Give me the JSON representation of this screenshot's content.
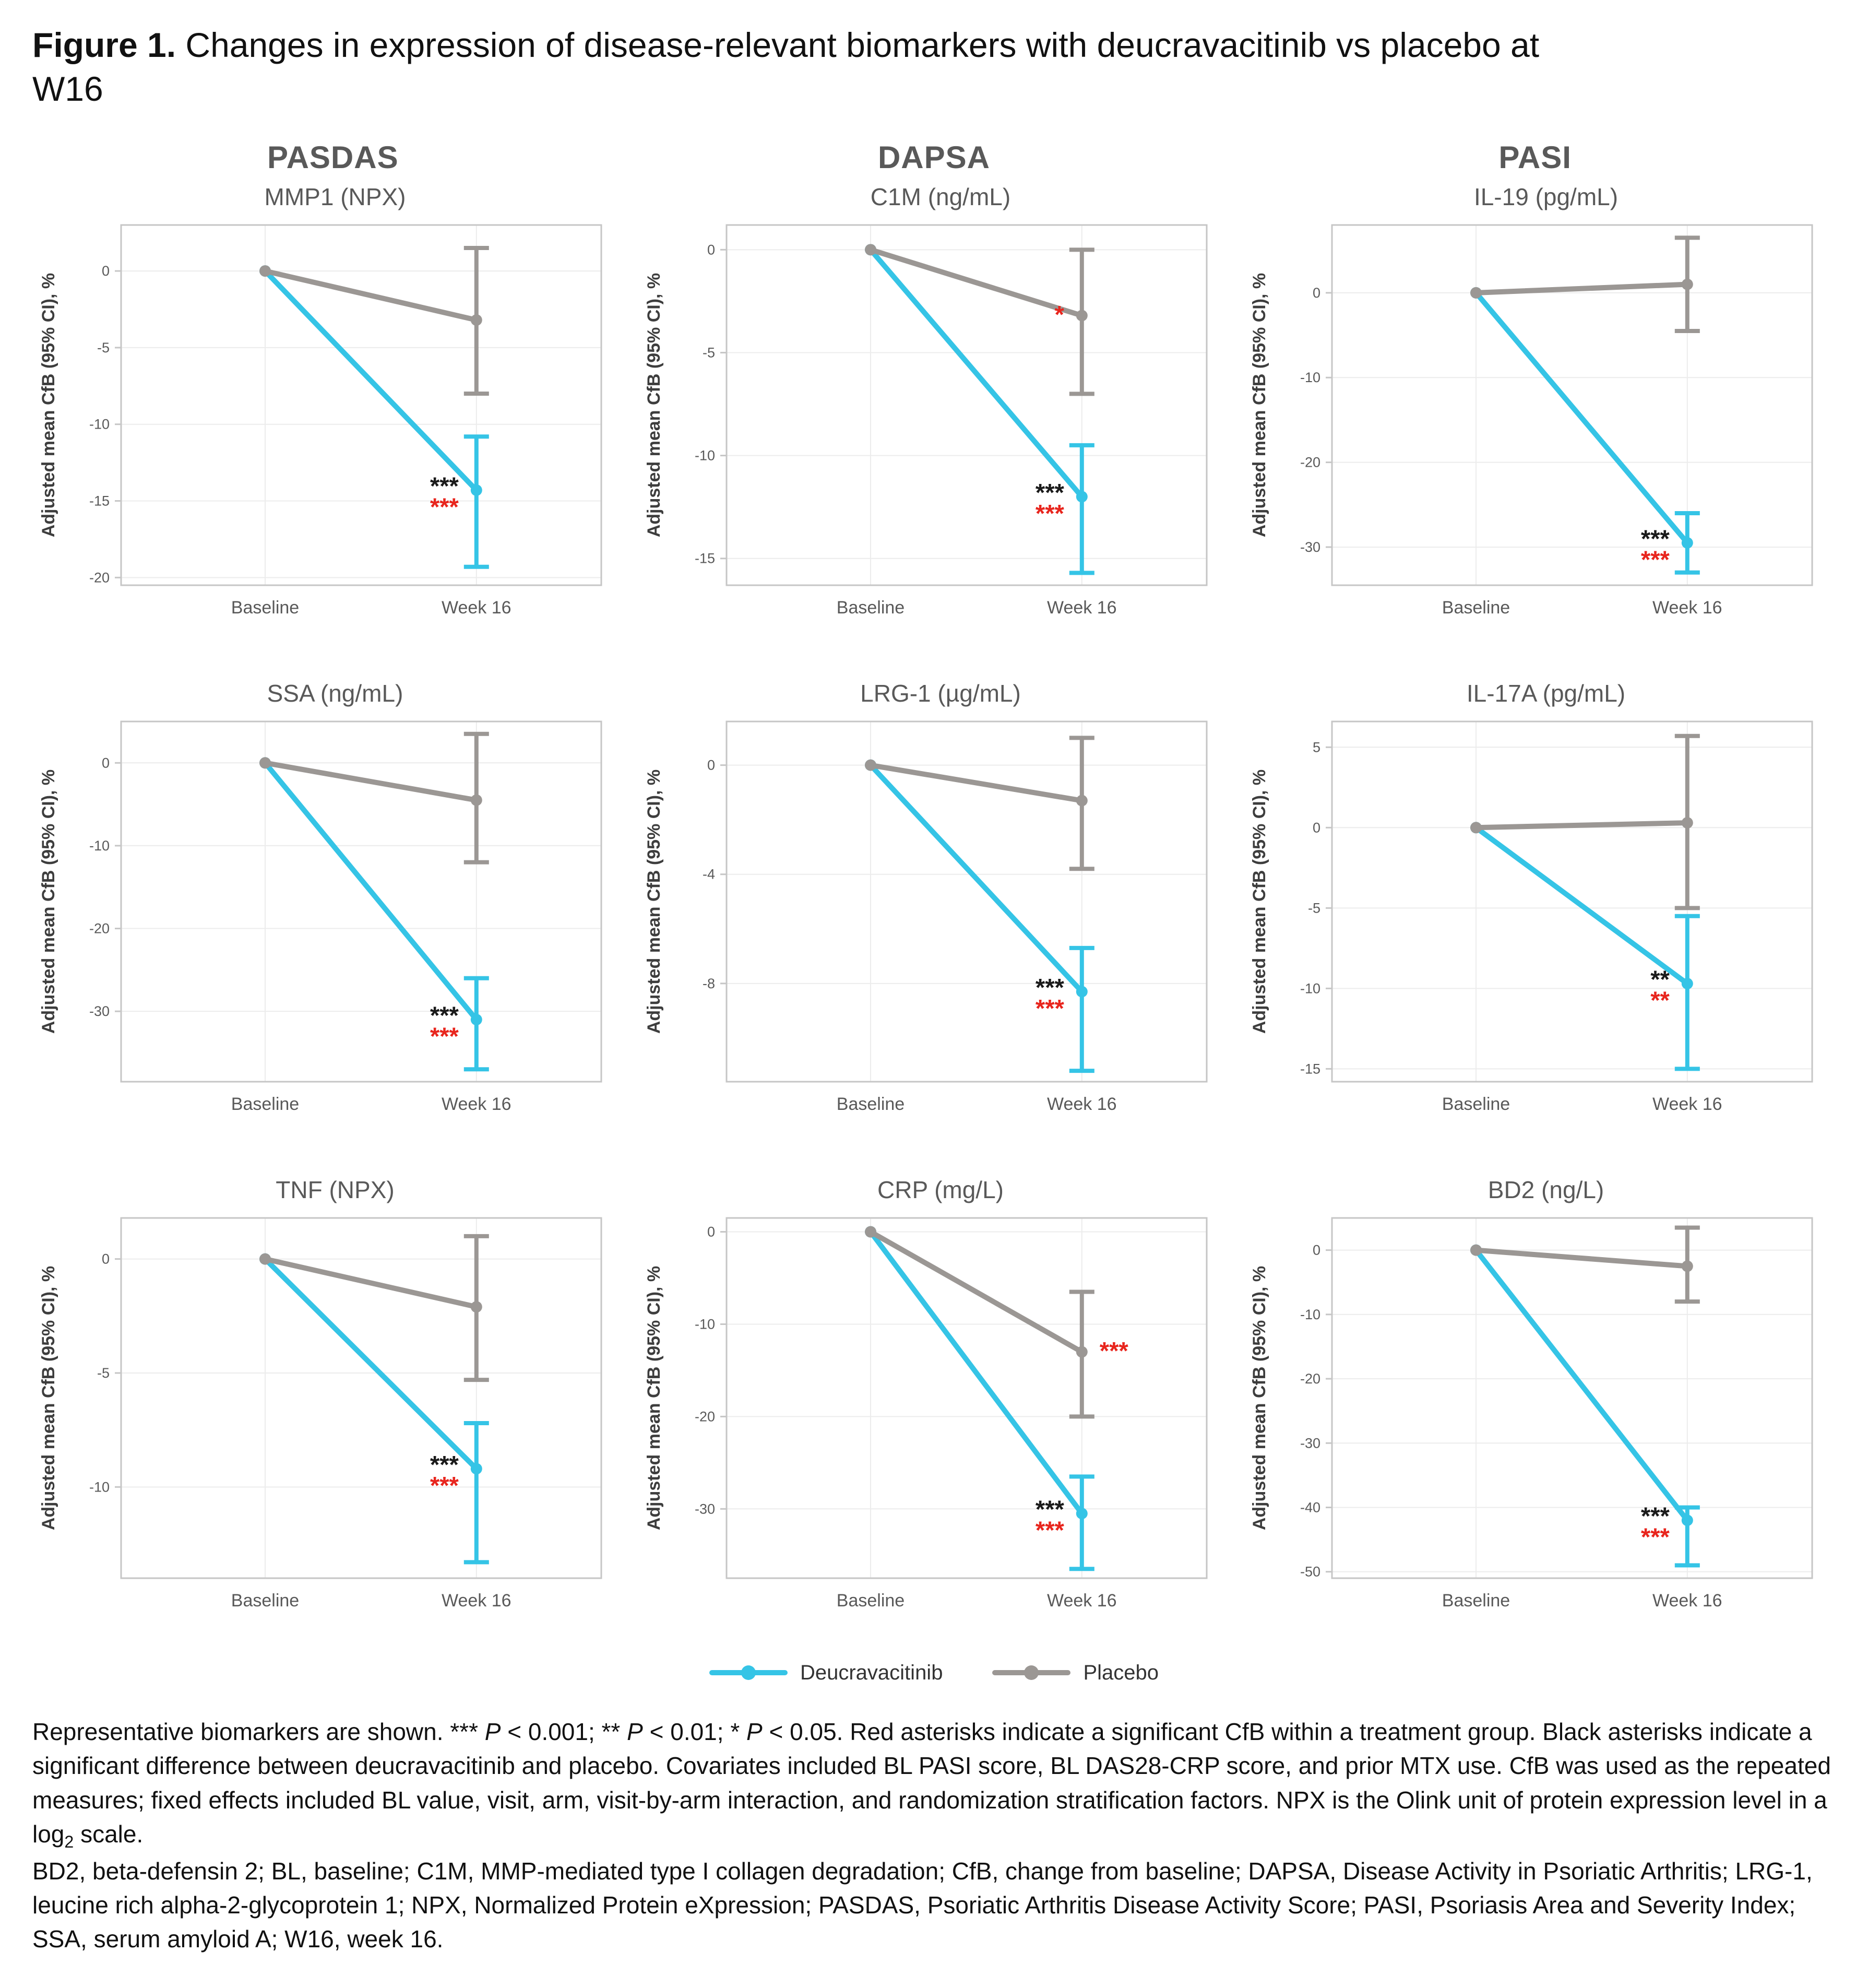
{
  "figure": {
    "title_prefix": "Figure 1.",
    "title_rest": " Changes in expression of disease-relevant biomarkers with deucravacitinib vs placebo at W16"
  },
  "columns": [
    "PASDAS",
    "DAPSA",
    "PASI"
  ],
  "legend": [
    {
      "label": "Deucravacitinib",
      "color": "#35C4E6"
    },
    {
      "label": "Placebo",
      "color": "#9B9794"
    }
  ],
  "colors": {
    "deucravacitinib": "#35C4E6",
    "placebo": "#9B9794",
    "sig_red": "#E8251D",
    "sig_black": "#1A1A1A",
    "axis_text": "#595959",
    "grid": "#ECECEC",
    "panel_border": "#C6C6C6"
  },
  "axis": {
    "ylabel": "Adjusted mean CfB (95% CI), %",
    "x_categories": [
      "Baseline",
      "Week 16"
    ]
  },
  "chart_data": [
    {
      "type": "line",
      "title": "MMP1 (NPX)",
      "column": "PASDAS",
      "x": [
        "Baseline",
        "Week 16"
      ],
      "ylim": [
        -20.5,
        3
      ],
      "yticks": [
        0,
        -5,
        -10,
        -15,
        -20
      ],
      "series": [
        {
          "name": "Placebo",
          "values": [
            0,
            -3.2
          ],
          "ci": [
            null,
            [
              -8.0,
              1.5
            ]
          ],
          "sig": null
        },
        {
          "name": "Deucravacitinib",
          "values": [
            0,
            -14.3
          ],
          "ci": [
            null,
            [
              -19.3,
              -10.8
            ]
          ],
          "sig": {
            "black": "***",
            "red": "***",
            "side": "left"
          }
        }
      ]
    },
    {
      "type": "line",
      "title": "C1M (ng/mL)",
      "column": "DAPSA",
      "x": [
        "Baseline",
        "Week 16"
      ],
      "ylim": [
        -16.3,
        1.2
      ],
      "yticks": [
        0,
        -5,
        -10,
        -15
      ],
      "series": [
        {
          "name": "Placebo",
          "values": [
            0,
            -3.2
          ],
          "ci": [
            null,
            [
              -7.0,
              0.0
            ]
          ],
          "sig": {
            "black": "",
            "red": "*",
            "side": "left"
          }
        },
        {
          "name": "Deucravacitinib",
          "values": [
            0,
            -12.0
          ],
          "ci": [
            null,
            [
              -15.7,
              -9.5
            ]
          ],
          "sig": {
            "black": "***",
            "red": "***",
            "side": "left"
          }
        }
      ]
    },
    {
      "type": "line",
      "title": "IL-19 (pg/mL)",
      "column": "PASI",
      "x": [
        "Baseline",
        "Week 16"
      ],
      "ylim": [
        -34.5,
        8
      ],
      "yticks": [
        0,
        -10,
        -20,
        -30
      ],
      "series": [
        {
          "name": "Placebo",
          "values": [
            0,
            1.0
          ],
          "ci": [
            null,
            [
              -4.5,
              6.5
            ]
          ],
          "sig": null
        },
        {
          "name": "Deucravacitinib",
          "values": [
            0,
            -29.5
          ],
          "ci": [
            null,
            [
              -33.0,
              -26.0
            ]
          ],
          "sig": {
            "black": "***",
            "red": "***",
            "side": "left"
          }
        }
      ]
    },
    {
      "type": "line",
      "title": "SSA (ng/mL)",
      "column": "PASDAS",
      "x": [
        "Baseline",
        "Week 16"
      ],
      "ylim": [
        -38.5,
        5
      ],
      "yticks": [
        0,
        -10,
        -20,
        -30
      ],
      "series": [
        {
          "name": "Placebo",
          "values": [
            0,
            -4.5
          ],
          "ci": [
            null,
            [
              -12.0,
              3.5
            ]
          ],
          "sig": null
        },
        {
          "name": "Deucravacitinib",
          "values": [
            0,
            -31.0
          ],
          "ci": [
            null,
            [
              -37.0,
              -26.0
            ]
          ],
          "sig": {
            "black": "***",
            "red": "***",
            "side": "left"
          }
        }
      ]
    },
    {
      "type": "line",
      "title": "LRG-1 (µg/mL)",
      "column": "DAPSA",
      "x": [
        "Baseline",
        "Week 16"
      ],
      "ylim": [
        -11.6,
        1.6
      ],
      "yticks": [
        0,
        -4,
        -8
      ],
      "series": [
        {
          "name": "Placebo",
          "values": [
            0,
            -1.3
          ],
          "ci": [
            null,
            [
              -3.8,
              1.0
            ]
          ],
          "sig": null
        },
        {
          "name": "Deucravacitinib",
          "values": [
            0,
            -8.3
          ],
          "ci": [
            null,
            [
              -11.2,
              -6.7
            ]
          ],
          "sig": {
            "black": "***",
            "red": "***",
            "side": "left"
          }
        }
      ]
    },
    {
      "type": "line",
      "title": "IL-17A (pg/mL)",
      "column": "PASI",
      "x": [
        "Baseline",
        "Week 16"
      ],
      "ylim": [
        -15.8,
        6.6
      ],
      "yticks": [
        5,
        0,
        -5,
        -10,
        -15
      ],
      "series": [
        {
          "name": "Placebo",
          "values": [
            0,
            0.3
          ],
          "ci": [
            null,
            [
              -5.0,
              5.7
            ]
          ],
          "sig": null
        },
        {
          "name": "Deucravacitinib",
          "values": [
            0,
            -9.7
          ],
          "ci": [
            null,
            [
              -15.0,
              -5.5
            ]
          ],
          "sig": {
            "black": "**",
            "red": "**",
            "side": "left"
          }
        }
      ]
    },
    {
      "type": "line",
      "title": "TNF (NPX)",
      "column": "PASDAS",
      "x": [
        "Baseline",
        "Week 16"
      ],
      "ylim": [
        -14.0,
        1.8
      ],
      "yticks": [
        0,
        -5,
        -10
      ],
      "series": [
        {
          "name": "Placebo",
          "values": [
            0,
            -2.1
          ],
          "ci": [
            null,
            [
              -5.3,
              1.0
            ]
          ],
          "sig": null
        },
        {
          "name": "Deucravacitinib",
          "values": [
            0,
            -9.2
          ],
          "ci": [
            null,
            [
              -13.3,
              -7.2
            ]
          ],
          "sig": {
            "black": "***",
            "red": "***",
            "side": "left"
          }
        }
      ]
    },
    {
      "type": "line",
      "title": "CRP (mg/L)",
      "column": "DAPSA",
      "x": [
        "Baseline",
        "Week 16"
      ],
      "ylim": [
        -37.5,
        1.5
      ],
      "yticks": [
        0,
        -10,
        -20,
        -30
      ],
      "series": [
        {
          "name": "Placebo",
          "values": [
            0,
            -13.0
          ],
          "ci": [
            null,
            [
              -20.0,
              -6.5
            ]
          ],
          "sig": {
            "black": "",
            "red": "***",
            "side": "right"
          }
        },
        {
          "name": "Deucravacitinib",
          "values": [
            0,
            -30.5
          ],
          "ci": [
            null,
            [
              -36.5,
              -26.5
            ]
          ],
          "sig": {
            "black": "***",
            "red": "***",
            "side": "left"
          }
        }
      ]
    },
    {
      "type": "line",
      "title": "BD2 (ng/L)",
      "column": "PASI",
      "x": [
        "Baseline",
        "Week 16"
      ],
      "ylim": [
        -51,
        5
      ],
      "yticks": [
        0,
        -10,
        -20,
        -30,
        -40,
        -50
      ],
      "series": [
        {
          "name": "Placebo",
          "values": [
            0,
            -2.5
          ],
          "ci": [
            null,
            [
              -8.0,
              3.5
            ]
          ],
          "sig": null
        },
        {
          "name": "Deucravacitinib",
          "values": [
            0,
            -42.0
          ],
          "ci": [
            null,
            [
              -49.0,
              -40.0
            ]
          ],
          "sig": {
            "black": "***",
            "red": "***",
            "side": "left"
          }
        }
      ]
    }
  ],
  "footnotes": [
    [
      {
        "text": "Representative biomarkers are shown. *** "
      },
      {
        "text": "P",
        "italic": true
      },
      {
        "text": " < 0.001; ** "
      },
      {
        "text": "P",
        "italic": true
      },
      {
        "text": " < 0.01; * "
      },
      {
        "text": "P",
        "italic": true
      },
      {
        "text": " < 0.05. Red asterisks indicate a significant CfB within a treatment group. Black asterisks indicate a significant difference between deucravacitinib and placebo. Covariates included BL PASI score, BL DAS28-CRP score, and prior MTX use. CfB was used as the repeated measures; fixed effects included BL value, visit, arm, visit-by-arm interaction, and randomization stratification factors. NPX is the Olink unit of protein expression level in a log"
      },
      {
        "text": "2",
        "sub": true
      },
      {
        "text": " scale."
      }
    ],
    [
      {
        "text": "BD2, beta-defensin 2; BL, baseline; C1M, MMP-mediated type I collagen degradation; CfB, change from baseline; DAPSA, Disease Activity in Psoriatic Arthritis; LRG-1, leucine rich alpha-2-glycoprotein 1; NPX, Normalized Protein eXpression; PASDAS, Psoriatic Arthritis Disease Activity Score; PASI, Psoriasis Area and Severity Index; SSA, serum amyloid A; W16, week 16."
      }
    ]
  ]
}
